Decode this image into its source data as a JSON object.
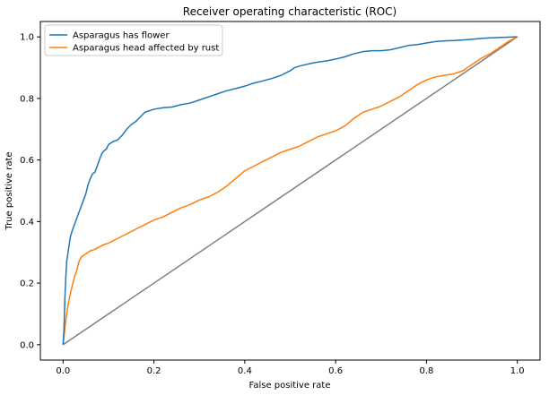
{
  "chart_data": {
    "type": "line",
    "title": "Receiver operating characteristic (ROC)",
    "xlabel": "False positive rate",
    "ylabel": "True positive rate",
    "xlim": [
      -0.05,
      1.05
    ],
    "ylim": [
      -0.05,
      1.05
    ],
    "xticks": [
      "0.0",
      "0.2",
      "0.4",
      "0.6",
      "0.8",
      "1.0"
    ],
    "yticks": [
      "0.0",
      "0.2",
      "0.4",
      "0.6",
      "0.8",
      "1.0"
    ],
    "grid": false,
    "legend_position": "upper-left",
    "series": [
      {
        "name": "Asparagus has flower",
        "color": "#1f77b4",
        "points": [
          [
            0.0,
            0.0
          ],
          [
            0.002,
            0.05
          ],
          [
            0.004,
            0.15
          ],
          [
            0.006,
            0.22
          ],
          [
            0.008,
            0.27
          ],
          [
            0.012,
            0.31
          ],
          [
            0.016,
            0.35
          ],
          [
            0.02,
            0.37
          ],
          [
            0.025,
            0.39
          ],
          [
            0.03,
            0.41
          ],
          [
            0.035,
            0.43
          ],
          [
            0.04,
            0.45
          ],
          [
            0.045,
            0.47
          ],
          [
            0.05,
            0.49
          ],
          [
            0.055,
            0.52
          ],
          [
            0.06,
            0.54
          ],
          [
            0.065,
            0.555
          ],
          [
            0.07,
            0.56
          ],
          [
            0.075,
            0.58
          ],
          [
            0.08,
            0.6
          ],
          [
            0.085,
            0.62
          ],
          [
            0.09,
            0.63
          ],
          [
            0.095,
            0.635
          ],
          [
            0.1,
            0.65
          ],
          [
            0.11,
            0.66
          ],
          [
            0.12,
            0.665
          ],
          [
            0.13,
            0.68
          ],
          [
            0.14,
            0.7
          ],
          [
            0.15,
            0.715
          ],
          [
            0.16,
            0.725
          ],
          [
            0.17,
            0.74
          ],
          [
            0.18,
            0.755
          ],
          [
            0.2,
            0.765
          ],
          [
            0.22,
            0.77
          ],
          [
            0.24,
            0.772
          ],
          [
            0.26,
            0.78
          ],
          [
            0.28,
            0.785
          ],
          [
            0.3,
            0.795
          ],
          [
            0.32,
            0.805
          ],
          [
            0.34,
            0.815
          ],
          [
            0.36,
            0.825
          ],
          [
            0.38,
            0.832
          ],
          [
            0.4,
            0.84
          ],
          [
            0.42,
            0.85
          ],
          [
            0.44,
            0.857
          ],
          [
            0.46,
            0.865
          ],
          [
            0.48,
            0.875
          ],
          [
            0.5,
            0.89
          ],
          [
            0.51,
            0.9
          ],
          [
            0.52,
            0.905
          ],
          [
            0.54,
            0.912
          ],
          [
            0.56,
            0.918
          ],
          [
            0.58,
            0.922
          ],
          [
            0.6,
            0.928
          ],
          [
            0.62,
            0.935
          ],
          [
            0.64,
            0.945
          ],
          [
            0.66,
            0.952
          ],
          [
            0.68,
            0.955
          ],
          [
            0.7,
            0.955
          ],
          [
            0.72,
            0.958
          ],
          [
            0.74,
            0.965
          ],
          [
            0.76,
            0.972
          ],
          [
            0.78,
            0.975
          ],
          [
            0.8,
            0.98
          ],
          [
            0.82,
            0.985
          ],
          [
            0.84,
            0.987
          ],
          [
            0.86,
            0.988
          ],
          [
            0.88,
            0.99
          ],
          [
            0.9,
            0.992
          ],
          [
            0.92,
            0.995
          ],
          [
            0.94,
            0.997
          ],
          [
            0.96,
            0.998
          ],
          [
            0.98,
            0.999
          ],
          [
            1.0,
            1.0
          ]
        ]
      },
      {
        "name": "Asparagus head affected by rust",
        "color": "#ff7f0e",
        "points": [
          [
            0.0,
            0.0
          ],
          [
            0.003,
            0.04
          ],
          [
            0.006,
            0.08
          ],
          [
            0.01,
            0.12
          ],
          [
            0.015,
            0.16
          ],
          [
            0.02,
            0.19
          ],
          [
            0.025,
            0.22
          ],
          [
            0.03,
            0.24
          ],
          [
            0.035,
            0.27
          ],
          [
            0.04,
            0.285
          ],
          [
            0.05,
            0.295
          ],
          [
            0.06,
            0.305
          ],
          [
            0.07,
            0.31
          ],
          [
            0.08,
            0.318
          ],
          [
            0.09,
            0.325
          ],
          [
            0.1,
            0.33
          ],
          [
            0.12,
            0.345
          ],
          [
            0.14,
            0.36
          ],
          [
            0.16,
            0.375
          ],
          [
            0.18,
            0.39
          ],
          [
            0.2,
            0.405
          ],
          [
            0.22,
            0.415
          ],
          [
            0.24,
            0.43
          ],
          [
            0.26,
            0.445
          ],
          [
            0.28,
            0.455
          ],
          [
            0.3,
            0.47
          ],
          [
            0.32,
            0.48
          ],
          [
            0.34,
            0.495
          ],
          [
            0.36,
            0.515
          ],
          [
            0.38,
            0.54
          ],
          [
            0.4,
            0.565
          ],
          [
            0.42,
            0.58
          ],
          [
            0.44,
            0.595
          ],
          [
            0.46,
            0.61
          ],
          [
            0.48,
            0.625
          ],
          [
            0.5,
            0.635
          ],
          [
            0.52,
            0.645
          ],
          [
            0.54,
            0.66
          ],
          [
            0.56,
            0.675
          ],
          [
            0.58,
            0.685
          ],
          [
            0.6,
            0.695
          ],
          [
            0.62,
            0.71
          ],
          [
            0.64,
            0.735
          ],
          [
            0.66,
            0.755
          ],
          [
            0.68,
            0.765
          ],
          [
            0.7,
            0.775
          ],
          [
            0.72,
            0.79
          ],
          [
            0.74,
            0.805
          ],
          [
            0.76,
            0.825
          ],
          [
            0.78,
            0.845
          ],
          [
            0.8,
            0.86
          ],
          [
            0.82,
            0.87
          ],
          [
            0.84,
            0.875
          ],
          [
            0.86,
            0.88
          ],
          [
            0.88,
            0.89
          ],
          [
            0.9,
            0.91
          ],
          [
            0.92,
            0.93
          ],
          [
            0.94,
            0.945
          ],
          [
            0.96,
            0.965
          ],
          [
            0.98,
            0.985
          ],
          [
            1.0,
            1.0
          ]
        ]
      },
      {
        "color": "#808080",
        "points": [
          [
            0.0,
            0.0
          ],
          [
            1.0,
            1.0
          ]
        ]
      }
    ]
  }
}
